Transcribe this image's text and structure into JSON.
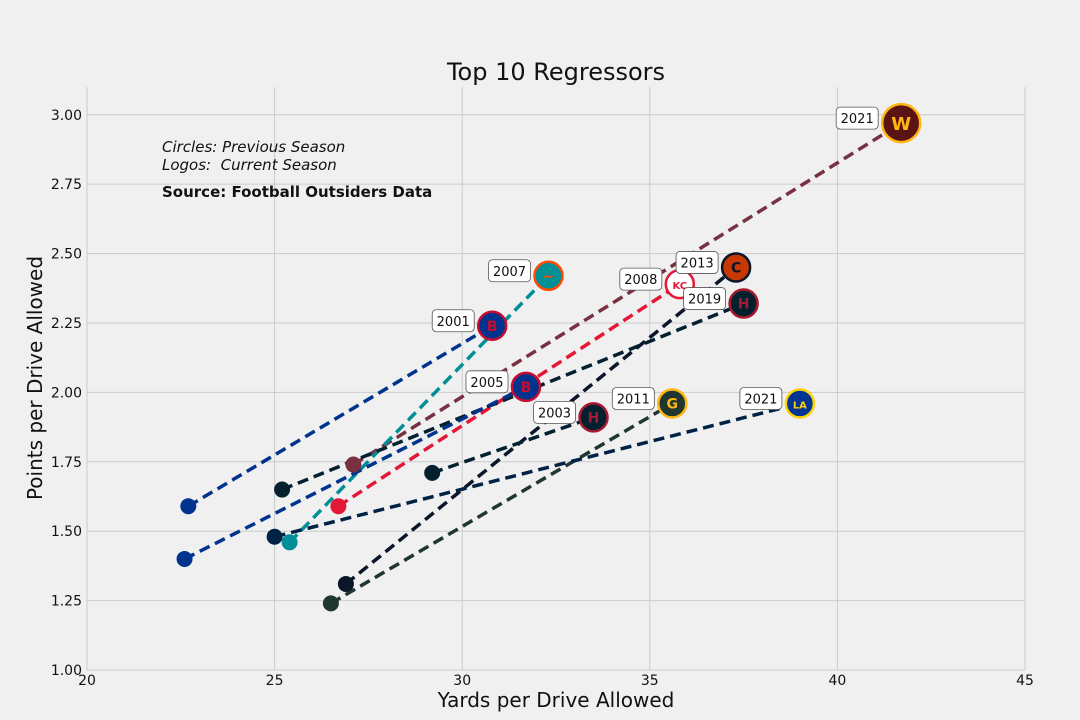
{
  "chart_data": {
    "type": "scatter",
    "title": "Top 10 Regressors",
    "xlabel": "Yards per Drive Allowed",
    "ylabel": "Points per Drive Allowed",
    "xlim": [
      20,
      45
    ],
    "ylim": [
      1.0,
      3.1
    ],
    "x_ticks": [
      "20",
      "25",
      "30",
      "35",
      "40",
      "45"
    ],
    "y_ticks": [
      "1.00",
      "1.25",
      "1.50",
      "1.75",
      "2.00",
      "2.25",
      "2.50",
      "2.75",
      "3.00"
    ],
    "grid": true,
    "notes": {
      "line1": "Circles: Previous Season",
      "line2": "Logos:  Current Season",
      "source": "Source: Football Outsiders Data"
    },
    "series": [
      {
        "year": "2021",
        "team": "Washington",
        "logo": "washington-logo",
        "color": "#773141",
        "logo_color": "#5a1414",
        "logo_accent": "#ffb612",
        "glyph": "W",
        "prev": [
          27.1,
          1.74
        ],
        "curr": [
          41.7,
          2.97
        ]
      },
      {
        "year": "2007",
        "team": "Miami",
        "logo": "dolphin-logo",
        "color": "#008e97",
        "logo_color": "#008e97",
        "logo_accent": "#fc4c02",
        "glyph": "~",
        "prev": [
          25.4,
          1.46
        ],
        "curr": [
          32.3,
          2.42
        ]
      },
      {
        "year": "2001",
        "team": "Buffalo",
        "logo": "bills-logo",
        "color": "#00338d",
        "logo_color": "#00338d",
        "logo_accent": "#c60c30",
        "glyph": "B",
        "prev": [
          22.7,
          1.59
        ],
        "curr": [
          30.8,
          2.24
        ]
      },
      {
        "year": "2008",
        "team": "Kansas City",
        "logo": "chiefs-logo",
        "color": "#e31837",
        "logo_color": "#ffffff",
        "logo_accent": "#e31837",
        "glyph": "KC",
        "prev": [
          26.7,
          1.59
        ],
        "curr": [
          35.8,
          2.39
        ]
      },
      {
        "year": "2013",
        "team": "Chicago",
        "logo": "bears-logo",
        "color": "#0b162a",
        "logo_color": "#c83803",
        "logo_accent": "#0b162a",
        "glyph": "C",
        "prev": [
          26.9,
          1.31
        ],
        "curr": [
          37.3,
          2.45
        ]
      },
      {
        "year": "2019",
        "team": "Houston",
        "logo": "texans-logo",
        "color": "#03202f",
        "logo_color": "#03202f",
        "logo_accent": "#a71930",
        "glyph": "H",
        "prev": [
          25.2,
          1.65
        ],
        "curr": [
          37.5,
          2.32
        ]
      },
      {
        "year": "2005",
        "team": "Buffalo",
        "logo": "bills-logo",
        "color": "#00338d",
        "logo_color": "#00338d",
        "logo_accent": "#c60c30",
        "glyph": "B",
        "prev": [
          22.6,
          1.4
        ],
        "curr": [
          31.7,
          2.02
        ]
      },
      {
        "year": "2003",
        "team": "Houston",
        "logo": "texans-logo",
        "color": "#03202f",
        "logo_color": "#03202f",
        "logo_accent": "#a71930",
        "glyph": "H",
        "prev": [
          29.2,
          1.71
        ],
        "curr": [
          33.5,
          1.91
        ]
      },
      {
        "year": "2011",
        "team": "Green Bay",
        "logo": "packers-logo",
        "color": "#203731",
        "logo_color": "#203731",
        "logo_accent": "#ffb612",
        "glyph": "G",
        "prev": [
          26.5,
          1.24
        ],
        "curr": [
          35.6,
          1.96
        ]
      },
      {
        "year": "2021",
        "team": "LA Rams",
        "logo": "rams-logo",
        "color": "#002244",
        "logo_color": "#003594",
        "logo_accent": "#ffd100",
        "glyph": "LA",
        "prev": [
          25.0,
          1.48
        ],
        "curr": [
          39.0,
          1.96
        ]
      }
    ]
  }
}
